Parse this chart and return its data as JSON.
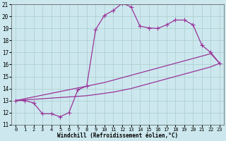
{
  "xlabel": "Windchill (Refroidissement éolien,°C)",
  "xlim": [
    -0.5,
    23.5
  ],
  "ylim": [
    11,
    21
  ],
  "xticks": [
    0,
    1,
    2,
    3,
    4,
    5,
    6,
    7,
    8,
    9,
    10,
    11,
    12,
    13,
    14,
    15,
    16,
    17,
    18,
    19,
    20,
    21,
    22,
    23
  ],
  "yticks": [
    11,
    12,
    13,
    14,
    15,
    16,
    17,
    18,
    19,
    20,
    21
  ],
  "background_color": "#cce8ee",
  "grid_color": "#aacccc",
  "line_color": "#993399",
  "line1_x": [
    0,
    1,
    2,
    3,
    4,
    5,
    6,
    7,
    8,
    9,
    10,
    11,
    12,
    13,
    14,
    15,
    16,
    17,
    18,
    19,
    20,
    21,
    22,
    23
  ],
  "line1_y": [
    13.0,
    13.0,
    12.8,
    11.9,
    11.9,
    11.65,
    12.0,
    13.9,
    14.2,
    18.9,
    20.1,
    20.5,
    21.1,
    20.8,
    19.2,
    19.05,
    19.0,
    19.3,
    19.7,
    19.7,
    19.3,
    17.6,
    17.0,
    16.1
  ],
  "line2_x": [
    0,
    1,
    2,
    3,
    4,
    5,
    6,
    7,
    8,
    9,
    10,
    11,
    12,
    13,
    14,
    15,
    16,
    17,
    18,
    19,
    20,
    21,
    22,
    23
  ],
  "line2_y": [
    13.0,
    13.15,
    13.3,
    13.45,
    13.6,
    13.75,
    13.9,
    14.05,
    14.2,
    14.35,
    14.5,
    14.7,
    14.9,
    15.1,
    15.3,
    15.5,
    15.7,
    15.9,
    16.1,
    16.3,
    16.5,
    16.7,
    16.9,
    16.1
  ],
  "line3_x": [
    0,
    1,
    2,
    3,
    4,
    5,
    6,
    7,
    8,
    9,
    10,
    11,
    12,
    13,
    14,
    15,
    16,
    17,
    18,
    19,
    20,
    21,
    22,
    23
  ],
  "line3_y": [
    13.0,
    13.05,
    13.1,
    13.15,
    13.2,
    13.25,
    13.3,
    13.35,
    13.4,
    13.5,
    13.6,
    13.7,
    13.85,
    14.0,
    14.2,
    14.4,
    14.6,
    14.8,
    15.0,
    15.2,
    15.4,
    15.6,
    15.8,
    16.1
  ],
  "marker": "+",
  "markersize": 4,
  "linewidth": 0.9
}
